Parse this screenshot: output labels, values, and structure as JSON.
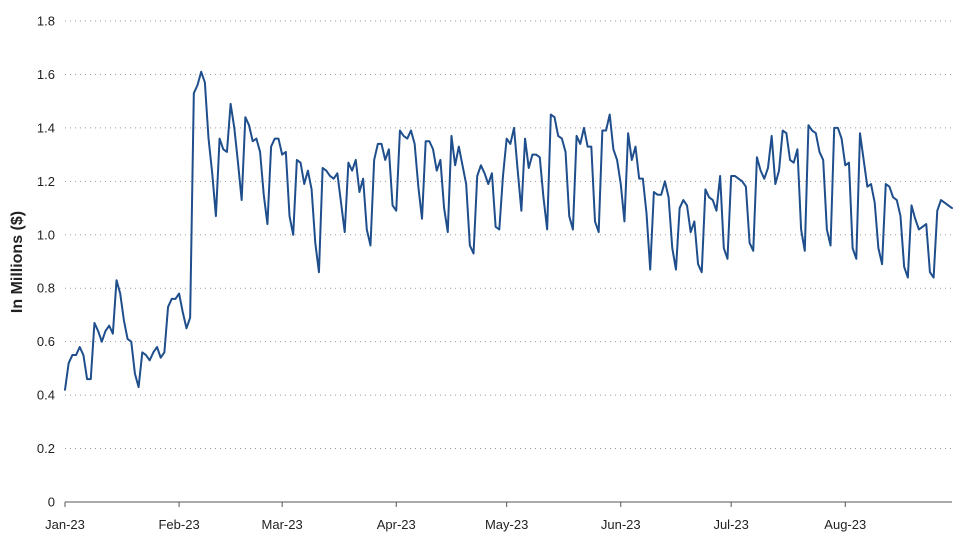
{
  "chart_data": {
    "type": "line",
    "title": "",
    "xlabel": "",
    "ylabel": "In Millions ($)",
    "ylim": [
      0,
      1.8
    ],
    "yticks": [
      "0",
      "0.2",
      "0.4",
      "0.6",
      "0.8",
      "1.0",
      "1.2",
      "1.4",
      "1.6",
      "1.8"
    ],
    "xticks": [
      "Jan-23",
      "Feb-23",
      "Mar-23",
      "Apr-23",
      "May-23",
      "Jun-23",
      "Jul-23",
      "Aug-23"
    ],
    "grid": "horizontal dotted",
    "legend": "none",
    "line_color": "#1f4e8c",
    "series": [
      {
        "values": [
          0.42,
          0.52,
          0.55,
          0.55,
          0.58,
          0.55,
          0.46,
          0.46,
          0.67,
          0.64,
          0.6,
          0.64,
          0.66,
          0.63,
          0.83,
          0.78,
          0.68,
          0.61,
          0.6,
          0.48,
          0.43,
          0.56,
          0.55,
          0.53,
          0.56,
          0.58,
          0.54,
          0.56,
          0.73,
          0.76,
          0.76,
          0.78,
          0.71,
          0.65,
          0.69,
          1.53,
          1.56,
          1.61,
          1.57,
          1.36,
          1.23,
          1.07,
          1.36,
          1.32,
          1.31,
          1.49,
          1.4,
          1.27,
          1.13,
          1.44,
          1.41,
          1.35,
          1.36,
          1.31,
          1.15,
          1.04,
          1.33,
          1.36,
          1.36,
          1.3,
          1.31,
          1.07,
          1.0,
          1.28,
          1.27,
          1.19,
          1.24,
          1.17,
          0.97,
          0.86,
          1.25,
          1.24,
          1.22,
          1.21,
          1.23,
          1.12,
          1.01,
          1.27,
          1.24,
          1.28,
          1.16,
          1.21,
          1.02,
          0.96,
          1.28,
          1.34,
          1.34,
          1.28,
          1.32,
          1.11,
          1.09,
          1.39,
          1.37,
          1.36,
          1.39,
          1.34,
          1.18,
          1.06,
          1.35,
          1.35,
          1.32,
          1.24,
          1.28,
          1.1,
          1.01,
          1.37,
          1.26,
          1.33,
          1.26,
          1.19,
          0.96,
          0.93,
          1.22,
          1.26,
          1.23,
          1.19,
          1.23,
          1.03,
          1.02,
          1.22,
          1.36,
          1.34,
          1.4,
          1.24,
          1.09,
          1.36,
          1.25,
          1.3,
          1.3,
          1.29,
          1.14,
          1.02,
          1.45,
          1.44,
          1.37,
          1.36,
          1.31,
          1.07,
          1.02,
          1.37,
          1.34,
          1.4,
          1.33,
          1.33,
          1.05,
          1.01,
          1.39,
          1.39,
          1.45,
          1.32,
          1.28,
          1.19,
          1.05,
          1.38,
          1.28,
          1.33,
          1.21,
          1.21,
          1.08,
          0.87,
          1.16,
          1.15,
          1.15,
          1.2,
          1.14,
          0.95,
          0.87,
          1.1,
          1.13,
          1.11,
          1.01,
          1.05,
          0.89,
          0.86,
          1.17,
          1.14,
          1.13,
          1.09,
          1.22,
          0.95,
          0.91,
          1.22,
          1.22,
          1.21,
          1.2,
          1.18,
          0.97,
          0.94,
          1.29,
          1.24,
          1.21,
          1.25,
          1.37,
          1.19,
          1.24,
          1.39,
          1.38,
          1.28,
          1.27,
          1.32,
          1.02,
          0.94,
          1.41,
          1.39,
          1.38,
          1.31,
          1.28,
          1.02,
          0.96,
          1.4,
          1.4,
          1.36,
          1.26,
          1.27,
          0.95,
          0.91,
          1.38,
          1.28,
          1.18,
          1.19,
          1.12,
          0.95,
          0.89,
          1.19,
          1.18,
          1.14,
          1.13,
          1.07,
          0.88,
          0.84,
          1.11,
          1.06,
          1.02,
          1.03,
          1.04,
          0.86,
          0.84,
          1.09,
          1.13,
          1.12,
          1.11,
          1.1
        ]
      }
    ]
  }
}
